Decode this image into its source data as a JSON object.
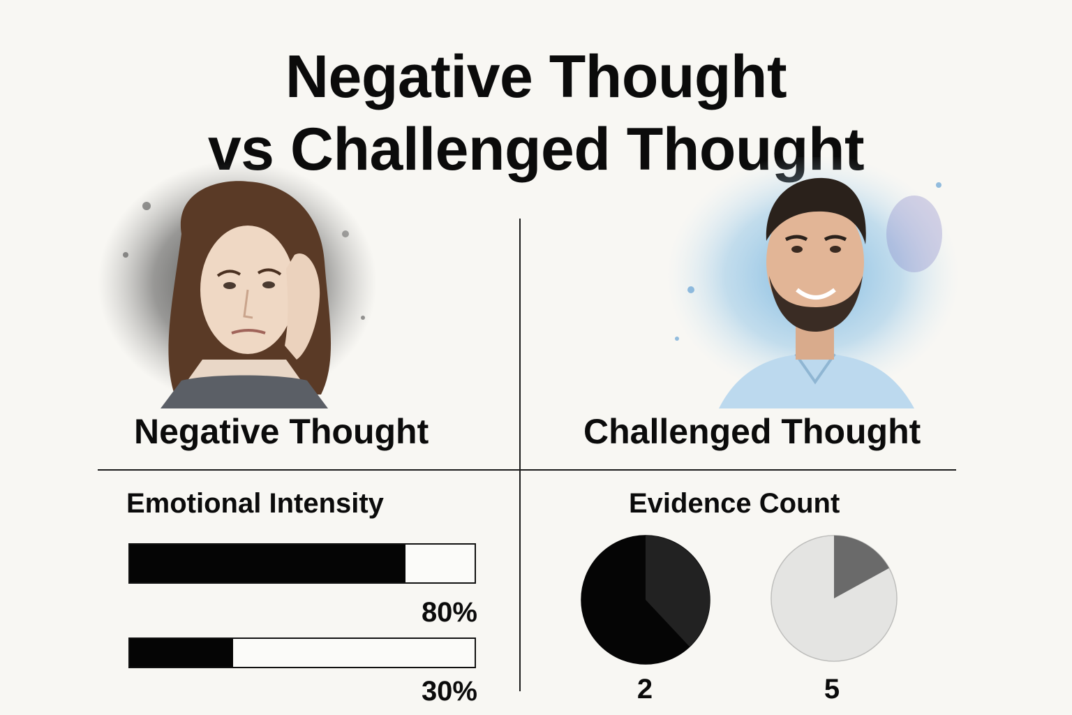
{
  "title": {
    "line1": "Negative Thought",
    "line2": "vs Challenged Thought"
  },
  "left": {
    "portrait_icon": "distressed-woman-portrait",
    "label": "Negative Thought",
    "section_title": "Emotional Intensity",
    "bars": [
      {
        "value": 0.8,
        "label": "80%"
      },
      {
        "value": 0.3,
        "label": "30%"
      }
    ]
  },
  "right": {
    "portrait_icon": "smiling-man-portrait",
    "label": "Challenged Thought",
    "section_title": "Evidence Count",
    "pies": [
      {
        "count_label": "2",
        "highlight_fraction": 0.38,
        "base_color": "#050505",
        "highlight_color": "#222222"
      },
      {
        "count_label": "5",
        "highlight_fraction": 0.17,
        "base_color": "#e4e4e2",
        "highlight_color": "#6a6a6a"
      }
    ]
  },
  "colors": {
    "background": "#f8f7f3",
    "ink": "#0b0b0b",
    "negative_wash": "#3a3a3a",
    "positive_wash": "#6fb0dc"
  }
}
